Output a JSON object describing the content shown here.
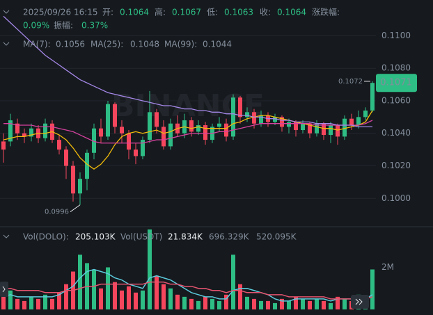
{
  "chart_data": {
    "type": "candlestick",
    "watermark": "BINANCE",
    "header": {
      "datetime": "2025/09/26 16:15",
      "open_label": "开:",
      "open": 0.1064,
      "high_label": "高:",
      "high": 0.1067,
      "low_label": "低:",
      "low": 0.1063,
      "close_label": "收:",
      "close": 0.1064,
      "change_label": "涨跌幅:",
      "change": {
        "value": 0.09,
        "label": "0.09%"
      },
      "amplitude_label": "振幅:",
      "amplitude": {
        "value": 0.37,
        "label": "0.37%"
      }
    },
    "ylim": [
      0.0983,
      0.1122
    ],
    "yticks": [
      {
        "value": 0.1,
        "label": "0.1000"
      },
      {
        "value": 0.102,
        "label": "0.1020"
      },
      {
        "value": 0.104,
        "label": "0.1040"
      },
      {
        "value": 0.106,
        "label": "0.1060"
      },
      {
        "value": 0.108,
        "label": "0.1080"
      },
      {
        "value": 0.11,
        "label": "0.1100"
      }
    ],
    "grid": true,
    "up_color": "#2ebd85",
    "down_color": "#f6465d",
    "candles": {
      "open": [
        0.1035,
        0.1035,
        0.1046,
        0.104,
        0.1038,
        0.1043,
        0.1037,
        0.1046,
        0.1036,
        0.103,
        0.102,
        0.1003,
        0.1012,
        0.1028,
        0.1043,
        0.1038,
        0.1058,
        0.1044,
        0.104,
        0.103,
        0.1026,
        0.1036,
        0.1053,
        0.1044,
        0.1032,
        0.1046,
        0.104,
        0.1048,
        0.1041,
        0.1045,
        0.1036,
        0.1044,
        0.1046,
        0.1038,
        0.1062,
        0.105,
        0.1053,
        0.1046,
        0.1051,
        0.1047,
        0.105,
        0.1044,
        0.1047,
        0.1042,
        0.1046,
        0.104,
        0.1046,
        0.1039,
        0.1045,
        0.1038,
        0.1049,
        0.1045,
        0.105,
        0.1054
      ],
      "high": [
        0.104,
        0.1052,
        0.1049,
        0.1043,
        0.1046,
        0.1045,
        0.1049,
        0.1048,
        0.1039,
        0.1032,
        0.1023,
        0.1016,
        0.103,
        0.1046,
        0.1049,
        0.106,
        0.1059,
        0.1048,
        0.1042,
        0.1034,
        0.1038,
        0.1066,
        0.1055,
        0.1048,
        0.1049,
        0.1051,
        0.1052,
        0.105,
        0.1048,
        0.1047,
        0.1046,
        0.105,
        0.1049,
        0.1064,
        0.1063,
        0.1056,
        0.1055,
        0.1054,
        0.1053,
        0.1052,
        0.1051,
        0.1049,
        0.1048,
        0.1048,
        0.1047,
        0.1048,
        0.1047,
        0.1047,
        0.1046,
        0.1051,
        0.1052,
        0.1054,
        0.1056,
        0.1072
      ],
      "low": [
        0.1022,
        0.1032,
        0.1036,
        0.1034,
        0.1035,
        0.1034,
        0.1035,
        0.1034,
        0.1027,
        0.1012,
        0.0998,
        0.0996,
        0.1005,
        0.1024,
        0.1034,
        0.1036,
        0.104,
        0.1034,
        0.1024,
        0.1021,
        0.1024,
        0.1034,
        0.104,
        0.103,
        0.103,
        0.1038,
        0.1037,
        0.1038,
        0.1039,
        0.1033,
        0.1034,
        0.1041,
        0.1035,
        0.1036,
        0.1046,
        0.1047,
        0.1043,
        0.1044,
        0.1044,
        0.1045,
        0.1041,
        0.104,
        0.1038,
        0.104,
        0.1037,
        0.1038,
        0.1036,
        0.1034,
        0.1033,
        0.1036,
        0.1042,
        0.1043,
        0.1048,
        0.1053
      ],
      "close": [
        0.103,
        0.1048,
        0.104,
        0.1038,
        0.1043,
        0.1037,
        0.1046,
        0.1036,
        0.103,
        0.102,
        0.1003,
        0.1012,
        0.1028,
        0.1043,
        0.1038,
        0.1058,
        0.1044,
        0.104,
        0.103,
        0.1026,
        0.1036,
        0.1053,
        0.1044,
        0.1032,
        0.1046,
        0.104,
        0.1048,
        0.1041,
        0.1045,
        0.1036,
        0.1044,
        0.1046,
        0.1038,
        0.1062,
        0.105,
        0.1053,
        0.1046,
        0.1051,
        0.1047,
        0.105,
        0.1044,
        0.1047,
        0.1042,
        0.1046,
        0.104,
        0.1046,
        0.1039,
        0.1045,
        0.1038,
        0.1049,
        0.1045,
        0.105,
        0.1054,
        0.1071
      ]
    },
    "ma": [
      {
        "name": "MA(7):",
        "color": "#f0b90b",
        "current": 0.1056,
        "values": [
          0.1036,
          0.1037,
          0.1038,
          0.1038,
          0.1039,
          0.104,
          0.104,
          0.1041,
          0.1039,
          0.1036,
          0.1031,
          0.1025,
          0.1021,
          0.1018,
          0.1021,
          0.1026,
          0.1033,
          0.1038,
          0.104,
          0.1041,
          0.104,
          0.1041,
          0.1042,
          0.104,
          0.1041,
          0.1043,
          0.1044,
          0.1043,
          0.1044,
          0.1043,
          0.1043,
          0.1043,
          0.1043,
          0.1046,
          0.1047,
          0.1049,
          0.105,
          0.1051,
          0.1051,
          0.105,
          0.1049,
          0.1048,
          0.1047,
          0.1046,
          0.1045,
          0.1044,
          0.1043,
          0.1043,
          0.1042,
          0.1043,
          0.1044,
          0.1045,
          0.1047,
          0.1054
        ]
      },
      {
        "name": "MA(25):",
        "color": "#d6419f",
        "current": 0.1048,
        "values": [
          0.1046,
          0.1046,
          0.1045,
          0.1045,
          0.1045,
          0.1044,
          0.1044,
          0.1044,
          0.1043,
          0.1042,
          0.1041,
          0.1039,
          0.1037,
          0.1035,
          0.1034,
          0.1034,
          0.1034,
          0.1034,
          0.1034,
          0.1034,
          0.1034,
          0.1035,
          0.1036,
          0.1036,
          0.1037,
          0.1038,
          0.1039,
          0.104,
          0.104,
          0.104,
          0.104,
          0.1041,
          0.1041,
          0.1042,
          0.1043,
          0.1044,
          0.1045,
          0.1046,
          0.1046,
          0.1046,
          0.1046,
          0.1046,
          0.1046,
          0.1046,
          0.1046,
          0.1045,
          0.1045,
          0.1045,
          0.1045,
          0.1045,
          0.1045,
          0.1045,
          0.1046,
          0.1048
        ]
      },
      {
        "name": "MA(99):",
        "color": "#a587e8",
        "current": 0.1044,
        "values": [
          0.1112,
          0.1108,
          0.1104,
          0.11,
          0.1096,
          0.1092,
          0.1088,
          0.1085,
          0.1082,
          0.1079,
          0.1076,
          0.1073,
          0.1071,
          0.1069,
          0.1067,
          0.1065,
          0.1064,
          0.1063,
          0.1062,
          0.1061,
          0.106,
          0.1059,
          0.1058,
          0.1057,
          0.1057,
          0.1056,
          0.1055,
          0.1055,
          0.1054,
          0.1054,
          0.1053,
          0.1053,
          0.1052,
          0.1052,
          0.1051,
          0.1051,
          0.105,
          0.105,
          0.1049,
          0.1049,
          0.1048,
          0.1048,
          0.1047,
          0.1047,
          0.1047,
          0.1046,
          0.1046,
          0.1046,
          0.1045,
          0.1045,
          0.1045,
          0.1044,
          0.1044,
          0.1044
        ]
      }
    ],
    "volume": {
      "ylim": [
        0,
        3800000
      ],
      "yticks": [
        {
          "value": 2000000,
          "label": "2M"
        }
      ],
      "legend": [
        {
          "label": "Vol(DOLO):",
          "value": {
            "value": 205103,
            "label": "205.103K"
          }
        },
        {
          "label": "Vol(USDT)",
          "value": {
            "value": 21834,
            "label": "21.834K"
          }
        }
      ],
      "values": [
        600000,
        900000,
        500000,
        400000,
        600000,
        500000,
        700000,
        500000,
        800000,
        1200000,
        1800000,
        2600000,
        2200000,
        1900000,
        1000000,
        2000000,
        1300000,
        900000,
        1100000,
        800000,
        900000,
        3800000,
        1600000,
        1200000,
        1000000,
        700000,
        600000,
        500000,
        400000,
        600000,
        500000,
        400000,
        700000,
        2600000,
        1200000,
        600000,
        500000,
        400000,
        400000,
        300000,
        500000,
        400000,
        600000,
        500000,
        400000,
        500000,
        400000,
        300000,
        600000,
        500000,
        400000,
        700000,
        500000,
        1900000
      ],
      "ma": [
        {
          "color": "#5ccadc",
          "current": {
            "value": 696329,
            "label": "696.329K"
          },
          "values": [
            600000,
            700000,
            600000,
            600000,
            600000,
            600000,
            600000,
            600000,
            700000,
            900000,
            1100000,
            1500000,
            1800000,
            1900000,
            1800000,
            1700000,
            1500000,
            1400000,
            1200000,
            1100000,
            1000000,
            1500000,
            1600000,
            1500000,
            1400000,
            1200000,
            1000000,
            800000,
            700000,
            600000,
            600000,
            500000,
            500000,
            900000,
            1000000,
            1000000,
            900000,
            800000,
            700000,
            500000,
            400000,
            400000,
            500000,
            500000,
            500000,
            500000,
            500000,
            400000,
            500000,
            500000,
            500000,
            500000,
            500000,
            700000
          ]
        },
        {
          "color": "#e3536f",
          "current": {
            "value": 520095,
            "label": "520.095K"
          },
          "values": [
            1000000,
            1000000,
            900000,
            900000,
            900000,
            900000,
            800000,
            800000,
            800000,
            900000,
            900000,
            1000000,
            1100000,
            1100000,
            1200000,
            1200000,
            1200000,
            1200000,
            1200000,
            1200000,
            1200000,
            1300000,
            1300000,
            1300000,
            1200000,
            1200000,
            1100000,
            1100000,
            1000000,
            1000000,
            900000,
            900000,
            800000,
            900000,
            900000,
            800000,
            800000,
            800000,
            700000,
            700000,
            700000,
            600000,
            600000,
            600000,
            600000,
            600000,
            600000,
            500000,
            500000,
            500000,
            500000,
            500000,
            500000,
            600000
          ]
        }
      ]
    }
  }
}
